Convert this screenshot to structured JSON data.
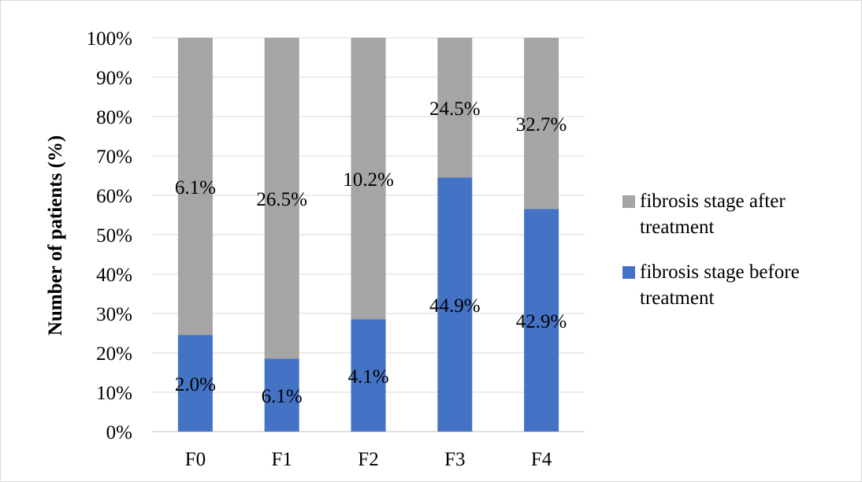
{
  "chart_data": {
    "type": "bar",
    "stacked": true,
    "categories": [
      "F0",
      "F1",
      "F2",
      "F3",
      "F4"
    ],
    "series": [
      {
        "name": "fibrosis stage before treatment",
        "color": "#4472c4",
        "values": [
          24.5,
          18.5,
          28.5,
          64.5,
          56.5
        ],
        "labels": [
          "2.0%",
          "6.1%",
          "4.1%",
          "44.9%",
          "42.9%"
        ]
      },
      {
        "name": "fibrosis stage after treatment",
        "color": "#a5a5a5",
        "values": [
          75.5,
          81.5,
          71.5,
          35.5,
          43.5
        ],
        "labels": [
          "6.1%",
          "26.5%",
          "10.2%",
          "24.5%",
          "32.7%"
        ]
      }
    ],
    "ylabel": "Number of patients (%)",
    "xlabel": "",
    "ylim": [
      0,
      100
    ],
    "yticks": [
      "0%",
      "10%",
      "20%",
      "30%",
      "40%",
      "50%",
      "60%",
      "70%",
      "80%",
      "90%",
      "100%"
    ],
    "grid": true,
    "legend_position": "right",
    "legend": [
      "fibrosis stage after treatment",
      "fibrosis stage before treatment"
    ]
  }
}
